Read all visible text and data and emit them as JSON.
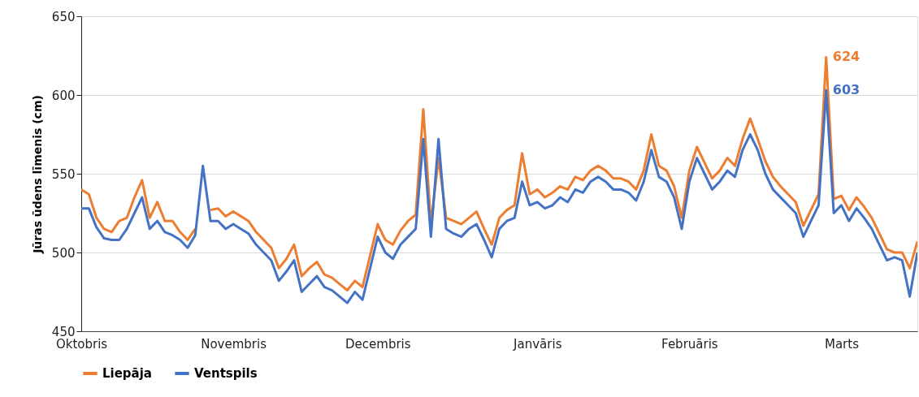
{
  "chart_data": {
    "type": "line",
    "ylabel": "Jūras ūdens līmenis (cm)",
    "categories": [
      "Oktobris",
      null,
      null,
      null,
      null,
      null,
      null,
      null,
      null,
      null,
      null,
      null,
      null,
      null,
      null,
      null,
      null,
      null,
      null,
      null,
      "Novembris",
      null,
      null,
      null,
      null,
      null,
      null,
      null,
      null,
      null,
      null,
      null,
      null,
      null,
      null,
      null,
      null,
      null,
      null,
      "Decembris",
      null,
      null,
      null,
      null,
      null,
      null,
      null,
      null,
      null,
      null,
      null,
      null,
      null,
      null,
      null,
      null,
      null,
      null,
      null,
      null,
      "Janvāris",
      null,
      null,
      null,
      null,
      null,
      null,
      null,
      null,
      null,
      null,
      null,
      null,
      null,
      null,
      null,
      null,
      null,
      null,
      null,
      "Februāris",
      null,
      null,
      null,
      null,
      null,
      null,
      null,
      null,
      null,
      null,
      null,
      null,
      null,
      null,
      null,
      null,
      null,
      null,
      null,
      "Marts",
      null,
      null,
      null,
      null,
      null,
      null,
      null,
      null,
      null,
      null
    ],
    "series": [
      {
        "name": "Liepāja",
        "color": "#ed7d31",
        "value_labels": [
          null,
          null,
          null,
          null,
          null,
          null,
          null,
          null,
          null,
          null,
          null,
          null,
          null,
          null,
          null,
          null,
          null,
          null,
          null,
          null,
          null,
          null,
          null,
          null,
          null,
          null,
          null,
          null,
          null,
          null,
          null,
          null,
          null,
          null,
          null,
          null,
          null,
          null,
          null,
          null,
          null,
          null,
          null,
          null,
          null,
          null,
          null,
          null,
          null,
          null,
          null,
          null,
          null,
          null,
          null,
          null,
          null,
          null,
          null,
          null,
          null,
          null,
          null,
          null,
          null,
          null,
          null,
          null,
          null,
          null,
          null,
          null,
          null,
          null,
          null,
          null,
          null,
          null,
          null,
          null,
          null,
          null,
          null,
          null,
          null,
          null,
          null,
          null,
          null,
          null,
          null,
          null,
          null,
          null,
          null,
          null,
          null,
          null,
          "624",
          null,
          null,
          null,
          null,
          null,
          null,
          null,
          null,
          null,
          null,
          null,
          null
        ],
        "values": [
          540,
          537,
          522,
          515,
          513,
          520,
          522,
          535,
          546,
          522,
          532,
          520,
          520,
          513,
          508,
          515,
          null,
          527,
          528,
          523,
          526,
          523,
          520,
          513,
          508,
          503,
          490,
          496,
          505,
          485,
          490,
          494,
          486,
          484,
          480,
          476,
          482,
          478,
          498,
          518,
          508,
          505,
          514,
          520,
          524,
          591,
          518,
          560,
          522,
          520,
          518,
          522,
          526,
          515,
          505,
          522,
          527,
          530,
          563,
          537,
          540,
          535,
          538,
          542,
          540,
          548,
          546,
          552,
          555,
          552,
          547,
          547,
          545,
          540,
          552,
          575,
          555,
          552,
          542,
          522,
          552,
          567,
          557,
          547,
          552,
          560,
          555,
          572,
          585,
          572,
          558,
          548,
          542,
          537,
          532,
          517,
          527,
          537,
          624,
          534,
          536,
          527,
          535,
          529,
          522,
          512,
          502,
          500,
          500,
          490,
          507
        ]
      },
      {
        "name": "Ventspils",
        "color": "#4472c4",
        "value_labels": [
          null,
          null,
          null,
          null,
          null,
          null,
          null,
          null,
          null,
          null,
          null,
          null,
          null,
          null,
          null,
          null,
          null,
          null,
          null,
          null,
          null,
          null,
          null,
          null,
          null,
          null,
          null,
          null,
          null,
          null,
          null,
          null,
          null,
          null,
          null,
          null,
          null,
          null,
          null,
          null,
          null,
          null,
          null,
          null,
          null,
          null,
          null,
          null,
          null,
          null,
          null,
          null,
          null,
          null,
          null,
          null,
          null,
          null,
          null,
          null,
          null,
          null,
          null,
          null,
          null,
          null,
          null,
          null,
          null,
          null,
          null,
          null,
          null,
          null,
          null,
          null,
          null,
          null,
          null,
          null,
          null,
          null,
          null,
          null,
          null,
          null,
          null,
          null,
          null,
          null,
          null,
          null,
          null,
          null,
          null,
          null,
          null,
          null,
          "603",
          null,
          null,
          null,
          null,
          null,
          null,
          null,
          null,
          null,
          null,
          null,
          null
        ],
        "values": [
          528,
          528,
          516,
          509,
          508,
          508,
          515,
          525,
          535,
          515,
          520,
          513,
          511,
          508,
          503,
          511,
          555,
          520,
          520,
          515,
          518,
          515,
          512,
          505,
          500,
          495,
          482,
          488,
          495,
          475,
          480,
          485,
          478,
          476,
          472,
          468,
          475,
          470,
          490,
          510,
          500,
          496,
          505,
          510,
          515,
          572,
          510,
          572,
          515,
          512,
          510,
          515,
          518,
          508,
          497,
          515,
          520,
          522,
          545,
          530,
          532,
          528,
          530,
          535,
          532,
          540,
          538,
          545,
          548,
          545,
          540,
          540,
          538,
          533,
          545,
          565,
          548,
          545,
          535,
          515,
          545,
          560,
          550,
          540,
          545,
          552,
          548,
          565,
          575,
          565,
          550,
          540,
          535,
          530,
          525,
          510,
          520,
          530,
          603,
          525,
          530,
          520,
          528,
          522,
          515,
          505,
          495,
          497,
          495,
          472,
          500
        ]
      }
    ],
    "ylim": [
      450,
      650
    ],
    "yticks": [
      450,
      500,
      550,
      600,
      650
    ],
    "grid": "y",
    "legend": "bottom",
    "marker": "none",
    "line_style": "solid"
  }
}
